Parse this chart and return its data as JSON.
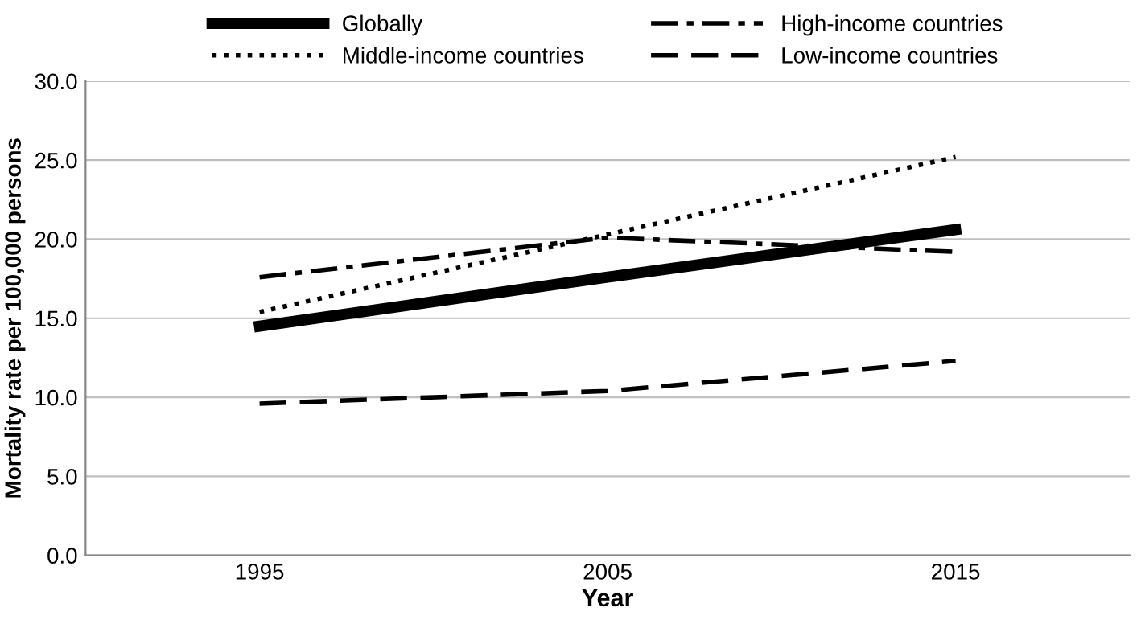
{
  "chart_data": {
    "type": "line",
    "xlabel": "Year",
    "ylabel": "Mortality rate per 100,000 persons",
    "categories": [
      "1995",
      "2005",
      "2015"
    ],
    "series": [
      {
        "name": "Globally",
        "color": "#000000",
        "values": [
          14.5,
          17.6,
          20.6
        ],
        "line_style": "solid"
      },
      {
        "name": "High-income countries",
        "color": "#000000",
        "values": [
          17.6,
          20.1,
          19.2
        ],
        "line_style": "dashdot"
      },
      {
        "name": "Middle-income countries",
        "color": "#000000",
        "values": [
          15.4,
          20.3,
          25.2
        ],
        "line_style": "dotted"
      },
      {
        "name": "Low-income countries",
        "color": "#000000",
        "values": [
          9.6,
          10.4,
          12.3
        ],
        "line_style": "dashed"
      }
    ],
    "ylim": [
      0,
      30
    ],
    "yticks": [
      {
        "value": 0,
        "label": "0.0"
      },
      {
        "value": 5,
        "label": "5.0"
      },
      {
        "value": 10,
        "label": "10.0"
      },
      {
        "value": 15,
        "label": "15.0"
      },
      {
        "value": 20,
        "label": "20.0"
      },
      {
        "value": 25,
        "label": "25.0"
      },
      {
        "value": 30,
        "label": "30.0"
      }
    ],
    "grid": "y",
    "legend": "top",
    "marker": "none"
  }
}
